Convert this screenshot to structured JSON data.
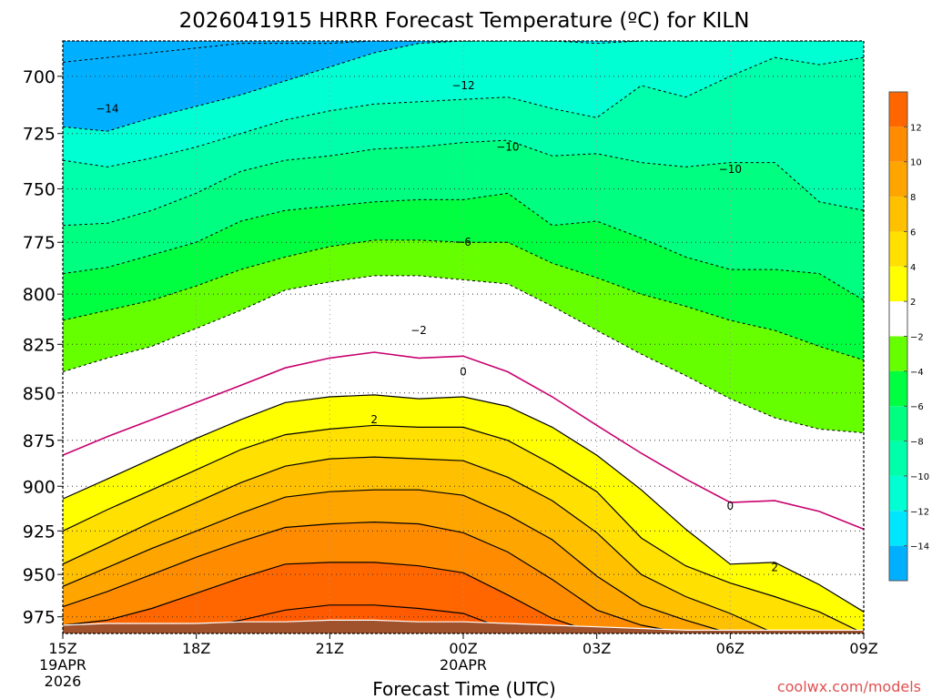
{
  "chart_data": {
    "type": "heatmap",
    "title": "2026041915 HRRR Forecast Temperature (ºC) for KILN",
    "xlabel": "Forecast Time (UTC)",
    "ylabel": "",
    "credit": "coolwx.com/models",
    "x_ticks": [
      {
        "label": "15Z",
        "sub": [
          "19APR",
          "2026"
        ],
        "hour": 0
      },
      {
        "label": "18Z",
        "sub": [],
        "hour": 3
      },
      {
        "label": "21Z",
        "sub": [],
        "hour": 6
      },
      {
        "label": "00Z",
        "sub": [
          "20APR"
        ],
        "hour": 9
      },
      {
        "label": "03Z",
        "sub": [],
        "hour": 12
      },
      {
        "label": "06Z",
        "sub": [],
        "hour": 15
      },
      {
        "label": "09Z",
        "sub": [],
        "hour": 18
      }
    ],
    "xlim": [
      0,
      18
    ],
    "y_ticks": [
      "700",
      "725",
      "750",
      "775",
      "800",
      "825",
      "850",
      "875",
      "900",
      "925",
      "950",
      "975"
    ],
    "y_tick_values": [
      700,
      725,
      750,
      775,
      800,
      825,
      850,
      875,
      900,
      925,
      950,
      975
    ],
    "ylim": [
      985,
      685
    ],
    "y_scale": "log-pressure",
    "colorbar": {
      "ticks": [
        {
          "value": 12,
          "label": "12"
        },
        {
          "value": 10,
          "label": "10"
        },
        {
          "value": 8,
          "label": "8"
        },
        {
          "value": 6,
          "label": "6"
        },
        {
          "value": 4,
          "label": "4"
        },
        {
          "value": 2,
          "label": "2"
        },
        {
          "value": -2,
          "label": "−2"
        },
        {
          "value": -4,
          "label": "−4"
        },
        {
          "value": -6,
          "label": "−6"
        },
        {
          "value": -8,
          "label": "−8"
        },
        {
          "value": -10,
          "label": "−10"
        },
        {
          "value": -12,
          "label": "−12"
        },
        {
          "value": -14,
          "label": "−14"
        }
      ],
      "bands": [
        {
          "min": 12,
          "max": 14,
          "color": "#ff6600"
        },
        {
          "min": 10,
          "max": 12,
          "color": "#ff8c00"
        },
        {
          "min": 8,
          "max": 10,
          "color": "#ffa500"
        },
        {
          "min": 6,
          "max": 8,
          "color": "#ffc000"
        },
        {
          "min": 4,
          "max": 6,
          "color": "#ffe000"
        },
        {
          "min": 2,
          "max": 4,
          "color": "#ffff00"
        },
        {
          "min": -2,
          "max": 2,
          "color": "#ffffff"
        },
        {
          "min": -4,
          "max": -2,
          "color": "#66ff00"
        },
        {
          "min": -6,
          "max": -4,
          "color": "#00ff40"
        },
        {
          "min": -8,
          "max": -6,
          "color": "#00ff80"
        },
        {
          "min": -10,
          "max": -8,
          "color": "#00ffaa"
        },
        {
          "min": -12,
          "max": -10,
          "color": "#00ffd2"
        },
        {
          "min": -14,
          "max": -12,
          "color": "#00e6ff"
        },
        {
          "min": -16,
          "max": -14,
          "color": "#00b0ff"
        }
      ]
    },
    "ground_color": "#a0522d",
    "isotherm_labels": [
      {
        "text": "−14",
        "hour": 1.0,
        "p": 714
      },
      {
        "text": "−12",
        "hour": 9.0,
        "p": 704
      },
      {
        "text": "−10",
        "hour": 10.0,
        "p": 731
      },
      {
        "text": "−10",
        "hour": 15.0,
        "p": 741
      },
      {
        "text": "−6",
        "hour": 9.0,
        "p": 775
      },
      {
        "text": "−2",
        "hour": 8.0,
        "p": 818
      },
      {
        "text": "0",
        "hour": 9.0,
        "p": 839
      },
      {
        "text": "0",
        "hour": 15.0,
        "p": 911
      },
      {
        "text": "2",
        "hour": 7.0,
        "p": 864
      },
      {
        "text": "2",
        "hour": 16.0,
        "p": 946
      }
    ],
    "series": [
      {
        "temp": -16,
        "p": [
          685,
          685,
          685,
          685,
          685,
          685,
          685,
          685,
          685,
          685,
          685,
          685,
          685,
          685,
          685,
          685,
          685,
          685,
          685
        ],
        "line": "none"
      },
      {
        "temp": -14,
        "p": [
          722,
          724,
          718,
          713,
          708,
          702,
          696,
          690,
          686,
          685,
          685,
          685,
          685,
          685,
          685,
          685,
          685,
          685,
          685
        ],
        "line": "dashed"
      },
      {
        "temp": -12,
        "p": [
          694,
          692,
          690,
          688,
          686,
          686,
          686,
          685,
          685,
          685,
          685,
          685,
          686,
          685,
          685,
          685,
          685,
          685,
          685
        ],
        "line": "dashed"
      },
      {
        "temp": -10,
        "p": [
          737,
          740,
          736,
          731,
          725,
          719,
          715,
          712,
          711,
          710,
          709,
          714,
          718,
          704,
          709,
          700,
          692,
          695,
          692
        ],
        "line": "dashed"
      },
      {
        "temp": -8,
        "p": [
          767,
          766,
          760,
          752,
          742,
          737,
          735,
          732,
          731,
          729,
          728,
          735,
          734,
          738,
          740,
          738,
          738,
          756,
          760
        ],
        "line": "dashed"
      },
      {
        "temp": -6,
        "p": [
          790,
          787,
          781,
          775,
          765,
          760,
          758,
          756,
          755,
          755,
          752,
          767,
          765,
          773,
          782,
          788,
          788,
          790,
          803
        ],
        "line": "dashed"
      },
      {
        "temp": -4,
        "p": [
          813,
          808,
          803,
          796,
          788,
          782,
          777,
          774,
          774,
          775,
          775,
          785,
          792,
          800,
          806,
          813,
          818,
          826,
          833
        ],
        "line": "dashed"
      },
      {
        "temp": -2,
        "p": [
          839,
          832,
          826,
          817,
          808,
          798,
          794,
          791,
          791,
          793,
          795,
          806,
          818,
          830,
          841,
          853,
          863,
          869,
          871
        ],
        "line": "dashed"
      },
      {
        "temp": 0,
        "p": [
          883,
          873,
          864,
          855,
          846,
          837,
          832,
          829,
          832,
          831,
          839,
          852,
          867,
          882,
          896,
          909,
          908,
          914,
          924
        ],
        "line": "solid-magenta"
      },
      {
        "temp": 2,
        "p": [
          907,
          896,
          885,
          874,
          864,
          855,
          852,
          851,
          853,
          852,
          857,
          868,
          883,
          902,
          924,
          944,
          943,
          956,
          972
        ],
        "line": "solid"
      },
      {
        "temp": 4,
        "p": [
          925,
          913,
          902,
          891,
          880,
          872,
          869,
          867,
          868,
          868,
          875,
          888,
          903,
          929,
          945,
          955,
          963,
          972,
          985
        ],
        "line": "solid"
      },
      {
        "temp": 6,
        "p": [
          944,
          932,
          920,
          909,
          898,
          889,
          885,
          884,
          885,
          886,
          895,
          908,
          926,
          950,
          963,
          973,
          985,
          985,
          985
        ],
        "line": "solid"
      },
      {
        "temp": 8,
        "p": [
          957,
          946,
          935,
          925,
          915,
          906,
          903,
          902,
          902,
          905,
          916,
          930,
          951,
          968,
          977,
          985,
          985,
          985,
          985
        ],
        "line": "solid"
      },
      {
        "temp": 10,
        "p": [
          969,
          960,
          950,
          940,
          931,
          923,
          921,
          920,
          921,
          926,
          937,
          953,
          971,
          980,
          985,
          985,
          985,
          985,
          985
        ],
        "line": "solid"
      },
      {
        "temp": 12,
        "p": [
          980,
          977,
          970,
          961,
          952,
          944,
          943,
          943,
          945,
          949,
          962,
          976,
          985,
          985,
          985,
          985,
          985,
          985,
          985
        ],
        "line": "solid"
      },
      {
        "temp": 14,
        "p": [
          985,
          985,
          985,
          982,
          977,
          971,
          968,
          968,
          970,
          973,
          983,
          985,
          985,
          985,
          985,
          985,
          985,
          985,
          985
        ],
        "line": "solid"
      }
    ],
    "ground_p": [
      980,
      979,
      979,
      979,
      978,
      978,
      977,
      977,
      978,
      978,
      979,
      980,
      981,
      982,
      983,
      983,
      983,
      983,
      983
    ]
  }
}
